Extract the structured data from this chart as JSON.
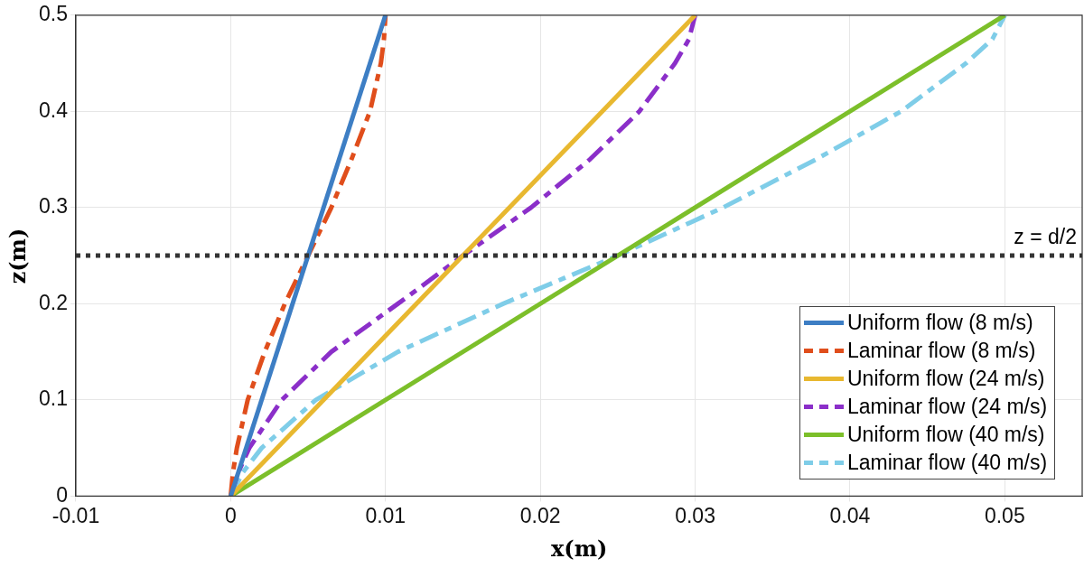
{
  "chart_data": {
    "type": "line",
    "xlabel": "x(m)",
    "ylabel": "z(m)",
    "xlim": [
      -0.01,
      0.055
    ],
    "xticks": [
      -0.01,
      0,
      0.01,
      0.02,
      0.03,
      0.04,
      0.05
    ],
    "ylim": [
      0,
      0.5
    ],
    "yticks": [
      0,
      0.1,
      0.2,
      0.3,
      0.4,
      0.5
    ],
    "grid": true,
    "legend": "bottom right",
    "marker": "none",
    "ref_lines": [
      {
        "axis": "y",
        "value": 0.25,
        "label": "z = d/2",
        "color": "#333333",
        "line_style": "dotted"
      }
    ],
    "series": [
      {
        "name": "Uniform flow (8 m/s)",
        "color": "#3d7ec4",
        "line_style": "solid",
        "x": [
          0,
          0.01
        ],
        "values": [
          0,
          0.5
        ]
      },
      {
        "name": "Laminar flow (8 m/s)",
        "color": "#e04e1c",
        "line_style": "dashed",
        "x": [
          0,
          0.00015,
          0.0004,
          0.0011,
          0.0022,
          0.0035,
          0.005,
          0.0065,
          0.0078,
          0.009,
          0.0097,
          0.0099,
          0.01
        ],
        "values": [
          0,
          0.025,
          0.05,
          0.1,
          0.15,
          0.2,
          0.25,
          0.3,
          0.35,
          0.4,
          0.45,
          0.475,
          0.5
        ]
      },
      {
        "name": "Uniform flow (24 m/s)",
        "color": "#e8b830",
        "line_style": "solid",
        "x": [
          0,
          0.03
        ],
        "values": [
          0,
          0.5
        ]
      },
      {
        "name": "Laminar flow (24 m/s)",
        "color": "#8b2fc9",
        "line_style": "dashed",
        "x": [
          0,
          0.0005,
          0.0012,
          0.0033,
          0.0065,
          0.0108,
          0.015,
          0.0194,
          0.0232,
          0.0264,
          0.0287,
          0.0296,
          0.03
        ],
        "values": [
          0,
          0.025,
          0.05,
          0.1,
          0.15,
          0.2,
          0.25,
          0.3,
          0.35,
          0.4,
          0.45,
          0.475,
          0.5
        ]
      },
      {
        "name": "Uniform flow (40 m/s)",
        "color": "#7cbf2a",
        "line_style": "solid",
        "x": [
          0,
          0.05
        ],
        "values": [
          0,
          0.5
        ]
      },
      {
        "name": "Laminar flow (40 m/s)",
        "color": "#7fcde8",
        "line_style": "dashed",
        "x": [
          0,
          0.0008,
          0.002,
          0.0055,
          0.0108,
          0.0176,
          0.025,
          0.0318,
          0.0378,
          0.0433,
          0.0475,
          0.0492,
          0.05
        ],
        "values": [
          0,
          0.025,
          0.05,
          0.1,
          0.15,
          0.2,
          0.25,
          0.3,
          0.35,
          0.4,
          0.45,
          0.475,
          0.5
        ]
      }
    ]
  }
}
